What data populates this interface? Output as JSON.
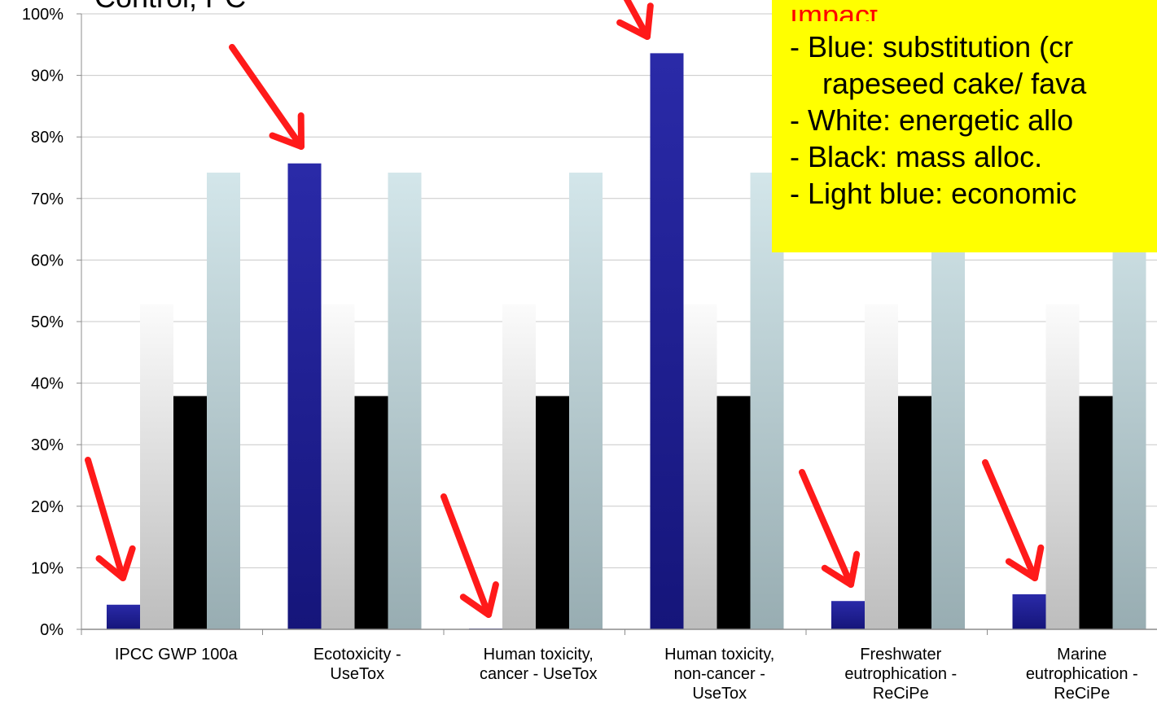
{
  "top_fragment": "Control, PC",
  "chart_data": {
    "type": "bar",
    "categories": [
      [
        "IPCC GWP 100a"
      ],
      [
        "Ecotoxicity -",
        "UseTox"
      ],
      [
        "Human toxicity,",
        "cancer - UseTox"
      ],
      [
        "Human toxicity,",
        "non-cancer -",
        "UseTox"
      ],
      [
        "Freshwater",
        "eutrophication -",
        "ReCiPe"
      ],
      [
        "Marine",
        "eutrophication -",
        "ReCiPe"
      ]
    ],
    "series": [
      {
        "name": "Blue: substitution",
        "color": "#1f1f99",
        "values": [
          4,
          75.7,
          0,
          93.6,
          4.6,
          5.7
        ]
      },
      {
        "name": "White: energetic alloc.",
        "color": "#f2f2f2",
        "values": [
          52.8,
          52.8,
          52.8,
          52.8,
          52.8,
          52.8
        ]
      },
      {
        "name": "Black: mass alloc.",
        "color": "#000000",
        "values": [
          37.9,
          37.9,
          37.9,
          37.9,
          37.9,
          37.9
        ]
      },
      {
        "name": "Light blue: economic alloc.",
        "color": "#b9d3d8",
        "values": [
          74.2,
          74.2,
          74.2,
          74.2,
          74.2,
          74.2
        ]
      }
    ],
    "ylim": [
      0,
      100
    ],
    "yticks": [
      "0%",
      "10%",
      "20%",
      "30%",
      "40%",
      "50%",
      "60%",
      "70%",
      "80%",
      "90%",
      "100%"
    ],
    "grid": true,
    "legend": {
      "placement": "top-right",
      "title": "Impact",
      "lines": [
        "- Blue: substitution (cr",
        "rapeseed cake/ fava",
        "- White: energetic allo",
        "- Black: mass alloc.",
        "- Light blue: economic"
      ]
    }
  },
  "annotations": {
    "arrow_color": "#ff1a1a"
  }
}
